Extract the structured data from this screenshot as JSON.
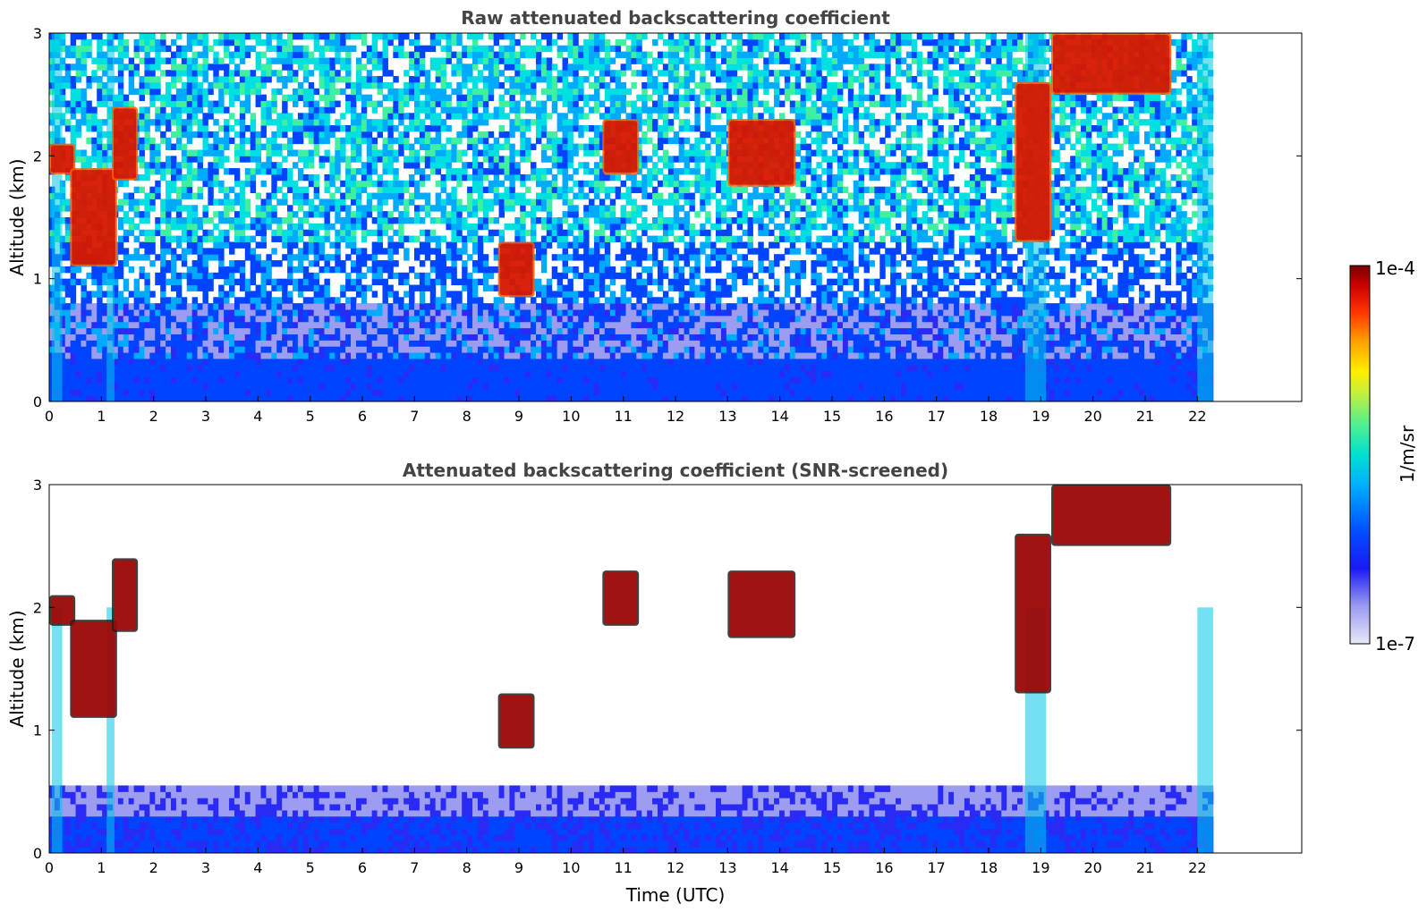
{
  "chart_data": [
    {
      "type": "heatmap",
      "title": "Raw attenuated backscattering coefficient",
      "ylabel": "Altitude (km)",
      "xlabel": "",
      "xlim": [
        0,
        24
      ],
      "ylim": [
        0,
        3
      ],
      "xticks": [
        "0",
        "1",
        "2",
        "3",
        "4",
        "5",
        "6",
        "7",
        "8",
        "9",
        "10",
        "11",
        "12",
        "13",
        "14",
        "15",
        "16",
        "17",
        "18",
        "19",
        "20",
        "21",
        "22"
      ],
      "yticks": [
        "0",
        "1",
        "2",
        "3"
      ],
      "data_end_hour": 22.3,
      "cloud_layers": [
        {
          "t": [
            0.0,
            0.5
          ],
          "alt": [
            1.85,
            2.1
          ]
        },
        {
          "t": [
            0.4,
            1.3
          ],
          "alt": [
            1.1,
            1.9
          ]
        },
        {
          "t": [
            1.2,
            1.7
          ],
          "alt": [
            1.8,
            2.4
          ]
        },
        {
          "t": [
            8.6,
            9.3
          ],
          "alt": [
            0.85,
            1.3
          ]
        },
        {
          "t": [
            10.6,
            11.3
          ],
          "alt": [
            1.85,
            2.3
          ]
        },
        {
          "t": [
            13.0,
            14.3
          ],
          "alt": [
            1.75,
            2.3
          ]
        },
        {
          "t": [
            18.5,
            19.2
          ],
          "alt": [
            1.3,
            2.6
          ]
        },
        {
          "t": [
            19.2,
            21.5
          ],
          "alt": [
            2.5,
            3.0
          ]
        }
      ]
    },
    {
      "type": "heatmap",
      "title": "Attenuated backscattering coefficient (SNR-screened)",
      "ylabel": "Altitude (km)",
      "xlabel": "Time (UTC)",
      "xlim": [
        0,
        24
      ],
      "ylim": [
        0,
        3
      ],
      "xticks": [
        "0",
        "1",
        "2",
        "3",
        "4",
        "5",
        "6",
        "7",
        "8",
        "9",
        "10",
        "11",
        "12",
        "13",
        "14",
        "15",
        "16",
        "17",
        "18",
        "19",
        "20",
        "21",
        "22"
      ],
      "yticks": [
        "0",
        "1",
        "2",
        "3"
      ],
      "boundary_layer_top_km": 0.55,
      "cloud_layers": [
        {
          "t": [
            0.0,
            0.5
          ],
          "alt": [
            1.85,
            2.1
          ]
        },
        {
          "t": [
            0.4,
            1.3
          ],
          "alt": [
            1.1,
            1.9
          ]
        },
        {
          "t": [
            1.2,
            1.7
          ],
          "alt": [
            1.8,
            2.4
          ]
        },
        {
          "t": [
            8.6,
            9.3
          ],
          "alt": [
            0.85,
            1.3
          ]
        },
        {
          "t": [
            10.6,
            11.3
          ],
          "alt": [
            1.85,
            2.3
          ]
        },
        {
          "t": [
            13.0,
            14.3
          ],
          "alt": [
            1.75,
            2.3
          ]
        },
        {
          "t": [
            18.5,
            19.2
          ],
          "alt": [
            1.3,
            2.6
          ]
        },
        {
          "t": [
            19.2,
            21.5
          ],
          "alt": [
            2.5,
            3.0
          ]
        }
      ]
    }
  ],
  "colorbar": {
    "label": "1/m/sr",
    "max_label": "1e-4",
    "min_label": "1e-7",
    "scale": "log",
    "colors": [
      "#e6e6f8",
      "#9c9cf0",
      "#2a2af5",
      "#0044ff",
      "#00aaff",
      "#00e0e0",
      "#40f0a0",
      "#c0f040",
      "#ffee00",
      "#ffaa00",
      "#ff4400",
      "#d80000",
      "#800000"
    ]
  }
}
